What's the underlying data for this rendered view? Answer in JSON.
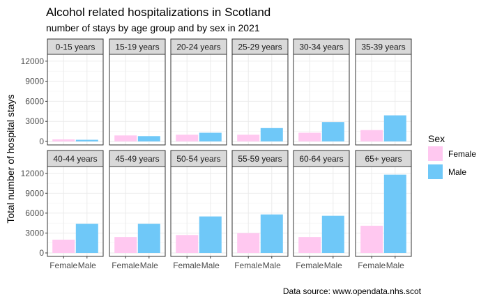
{
  "chart_data": {
    "type": "bar",
    "title": "Alcohol related hospitalizations in Scotland",
    "subtitle": "number of stays by age group and by sex in 2021",
    "xlabel": "",
    "ylabel": "Total number of hospital stays",
    "caption": "Data source: www.opendata.nhs.scot",
    "categories": [
      "Female",
      "Male"
    ],
    "ylim": [
      0,
      12500
    ],
    "yticks": [
      0,
      3000,
      6000,
      9000,
      12000
    ],
    "grid": true,
    "legend": {
      "title": "Sex",
      "position": "right",
      "entries": [
        "Female",
        "Male"
      ]
    },
    "colors": {
      "Female": "#ffc8f0",
      "Male": "#6fc8f8",
      "strip_fill": "#d9d9d9",
      "grid": "#ebebeb",
      "border": "#333333",
      "text": "#000000",
      "tick_text": "#4d4d4d"
    },
    "facets": [
      {
        "label": "0-15 years",
        "values": [
          300,
          250
        ]
      },
      {
        "label": "15-19 years",
        "values": [
          900,
          800
        ]
      },
      {
        "label": "20-24 years",
        "values": [
          1000,
          1300
        ]
      },
      {
        "label": "25-29 years",
        "values": [
          1000,
          2000
        ]
      },
      {
        "label": "30-34 years",
        "values": [
          1300,
          2900
        ]
      },
      {
        "label": "35-39 years",
        "values": [
          1700,
          3900
        ]
      },
      {
        "label": "40-44 years",
        "values": [
          2000,
          4400
        ]
      },
      {
        "label": "45-49 years",
        "values": [
          2400,
          4400
        ]
      },
      {
        "label": "50-54 years",
        "values": [
          2700,
          5500
        ]
      },
      {
        "label": "55-59 years",
        "values": [
          3000,
          5800
        ]
      },
      {
        "label": "60-64 years",
        "values": [
          2400,
          5600
        ]
      },
      {
        "label": "65+ years",
        "values": [
          4100,
          11800
        ]
      }
    ]
  }
}
